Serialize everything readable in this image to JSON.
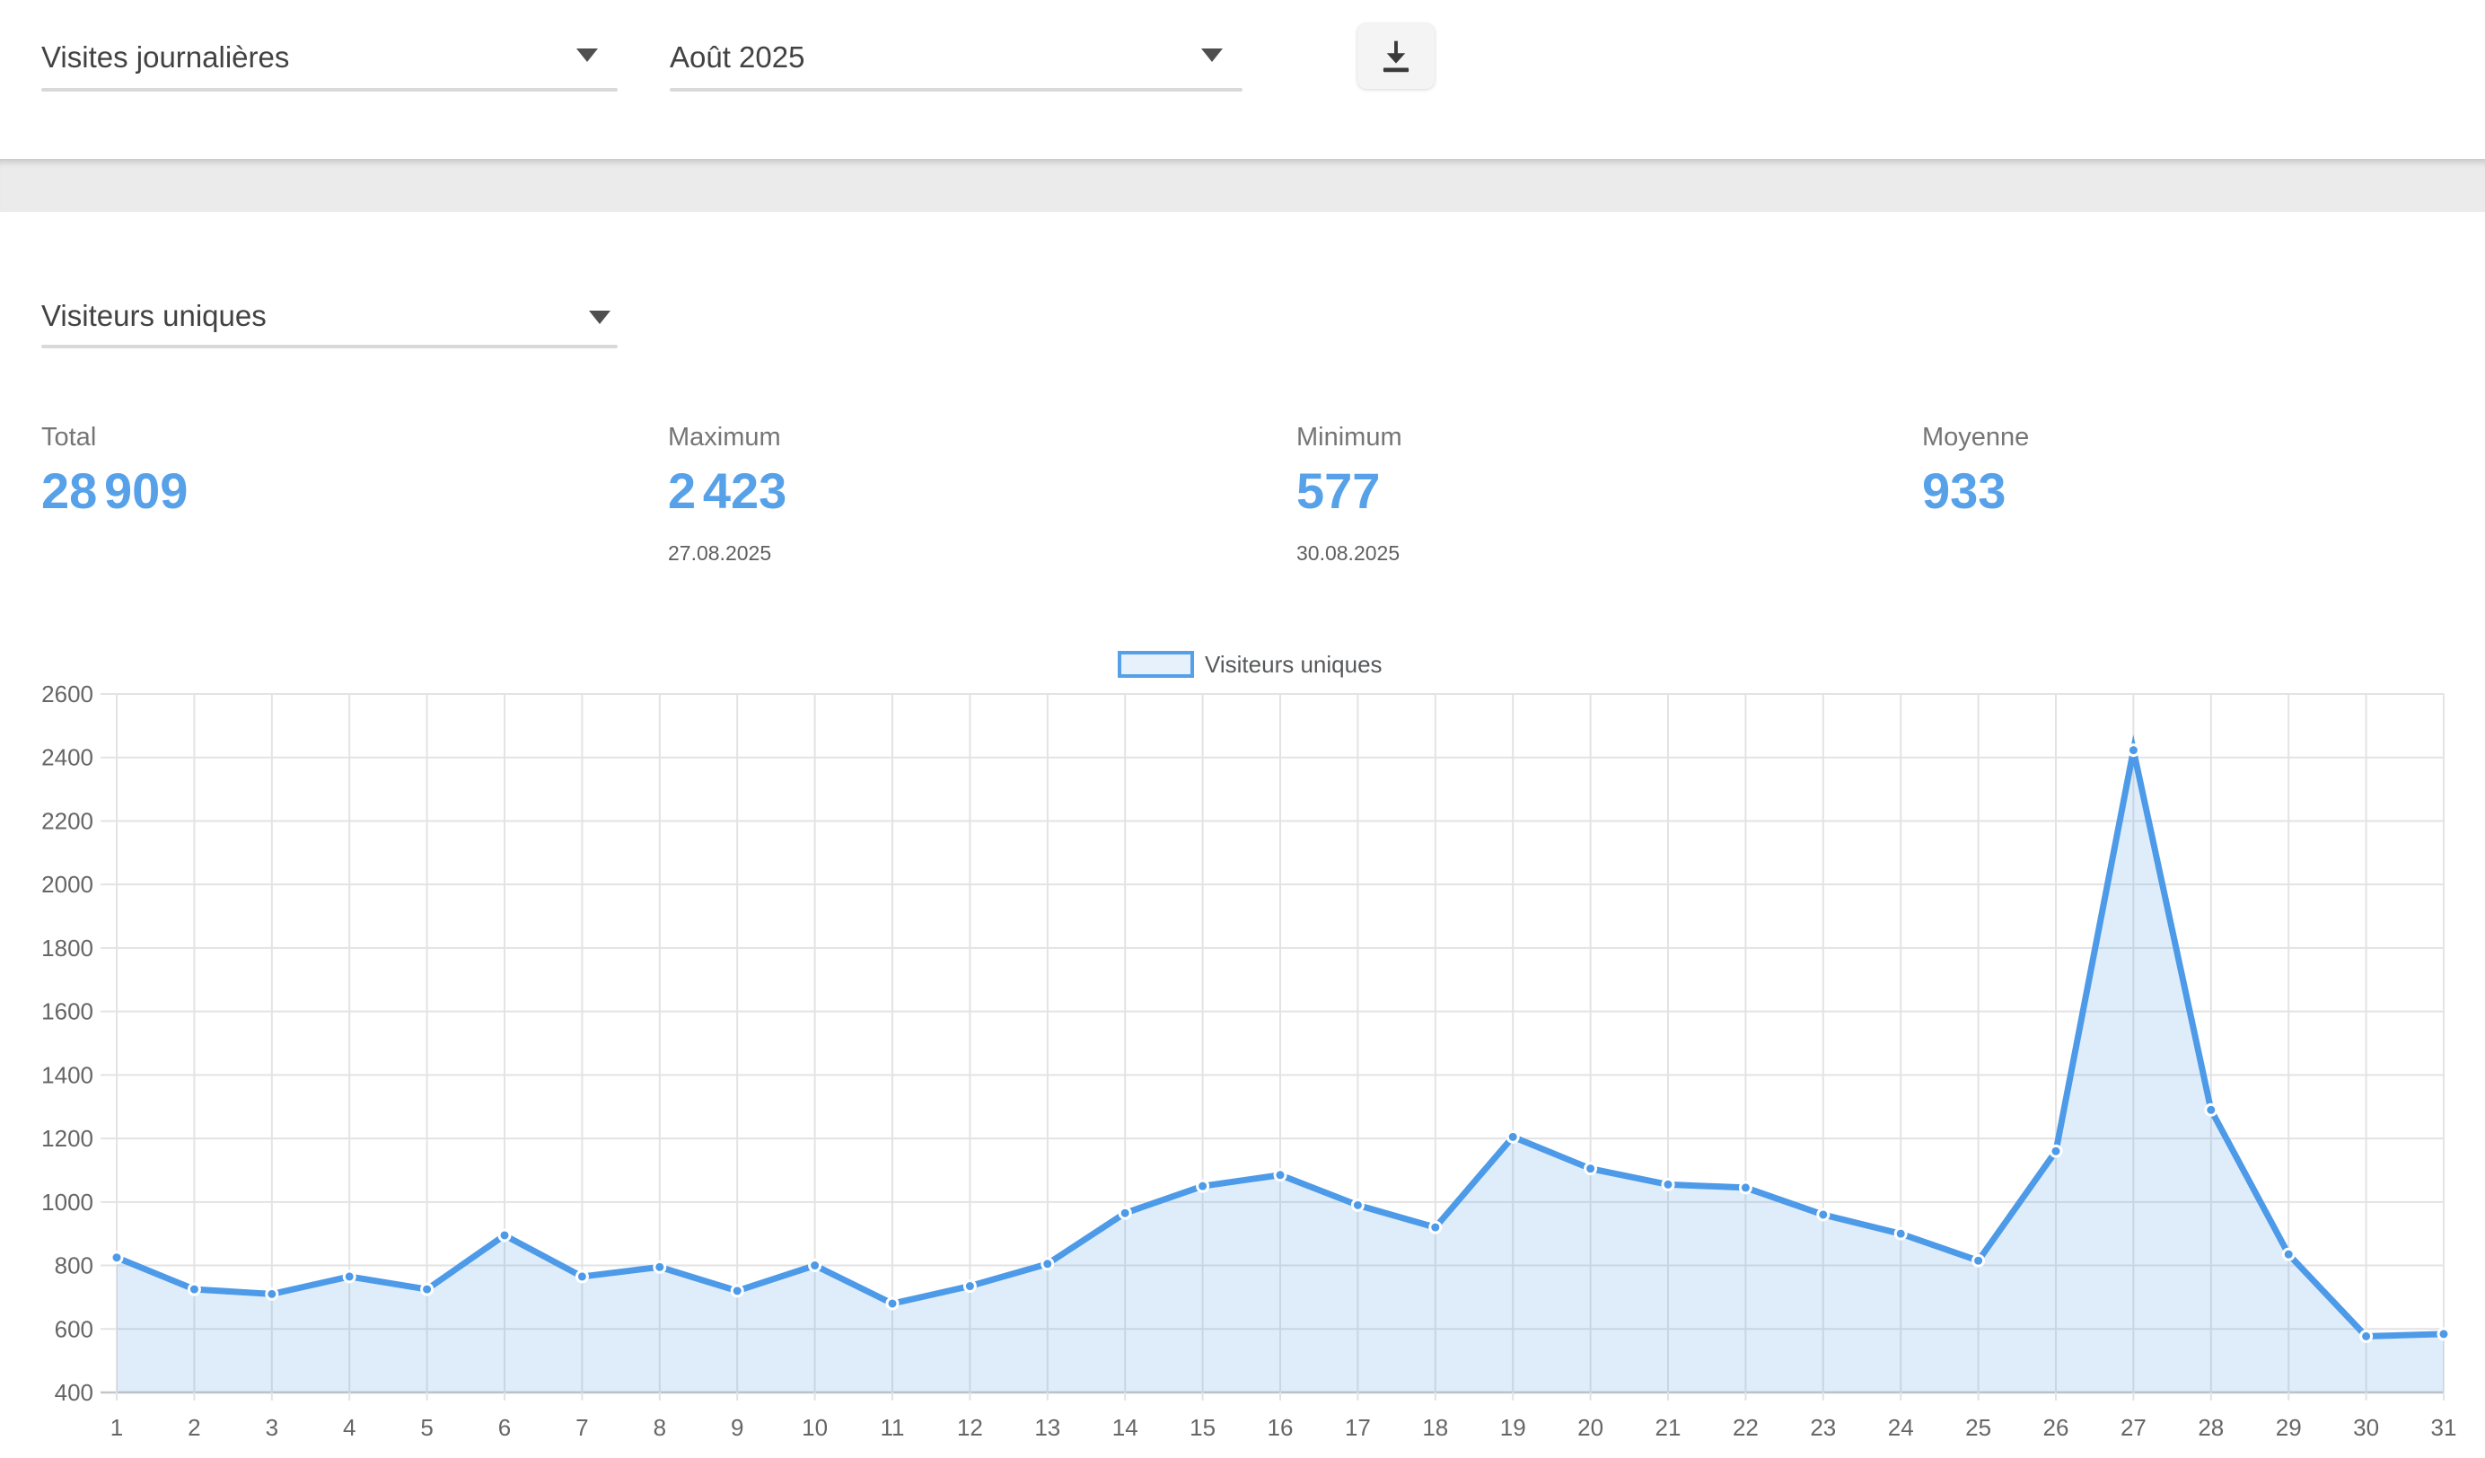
{
  "header": {
    "report_select_value": "Visites journalières",
    "period_select_value": "Août 2025"
  },
  "metric_select_value": "Visiteurs uniques",
  "stats": [
    {
      "label": "Total",
      "value": "28 909",
      "date": ""
    },
    {
      "label": "Maximum",
      "value": "2 423",
      "date": "27.08.2025"
    },
    {
      "label": "Minimum",
      "value": "577",
      "date": "30.08.2025"
    },
    {
      "label": "Moyenne",
      "value": "933",
      "date": ""
    }
  ],
  "chart_data": {
    "type": "area",
    "title": "",
    "legend": "Visiteurs uniques",
    "legend_position": "top-center",
    "grid": true,
    "xlabel": "",
    "ylabel": "",
    "x": [
      1,
      2,
      3,
      4,
      5,
      6,
      7,
      8,
      9,
      10,
      11,
      12,
      13,
      14,
      15,
      16,
      17,
      18,
      19,
      20,
      21,
      22,
      23,
      24,
      25,
      26,
      27,
      28,
      29,
      30,
      31
    ],
    "series": [
      {
        "name": "Visiteurs uniques",
        "values": [
          825,
          725,
          710,
          765,
          725,
          895,
          765,
          795,
          720,
          800,
          680,
          735,
          805,
          965,
          1050,
          1085,
          990,
          920,
          1205,
          1105,
          1055,
          1045,
          960,
          900,
          815,
          1160,
          2423,
          1290,
          835,
          577,
          584
        ]
      }
    ],
    "ylim": [
      400,
      2600
    ],
    "yticks": [
      400,
      600,
      800,
      1000,
      1200,
      1400,
      1600,
      1800,
      2000,
      2200,
      2400,
      2600
    ]
  },
  "colors": {
    "accent_blue": "#57A1E9",
    "line_blue": "#4D9AE8",
    "area_fill": "rgba(77,154,232,0.18)",
    "grid_line": "#E3E3E3",
    "axis_line": "#C6C6C6",
    "tick_text": "#666666"
  },
  "icons": {
    "download": "download-icon",
    "dropdown": "chevron-down-icon"
  }
}
